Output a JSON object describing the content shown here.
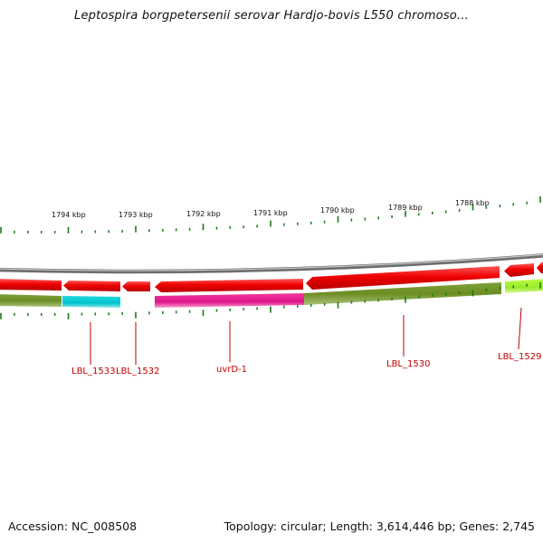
{
  "title": "Leptospira borgpetersenii serovar Hardjo-bovis L550 chromoso...",
  "footer": {
    "accession": "Accession: NC_008508",
    "summary": "Topology: circular; Length: 3,614,446 bp; Genes: 2,745"
  },
  "colors": {
    "forward_strand": "#ee0000",
    "track_olive": "#6b8e23",
    "track_cyan": "#00c8d2",
    "track_magenta": "#e8168a",
    "track_lime": "#a6f02a",
    "backbone": "#8a8a8a",
    "tick": "#1a7a1a",
    "gene_label": "#c00000"
  },
  "scale_labels": [
    "1794 kbp",
    "1793 kbp",
    "1792 kbp",
    "1791 kbp",
    "1790 kbp",
    "1789 kbp",
    "1788 kbp"
  ],
  "genes": [
    {
      "label": "LBL_1533"
    },
    {
      "label": "LBL_1532"
    },
    {
      "label": "uvrD-1"
    },
    {
      "label": "LBL_1530"
    },
    {
      "label": "LBL_1529"
    }
  ]
}
